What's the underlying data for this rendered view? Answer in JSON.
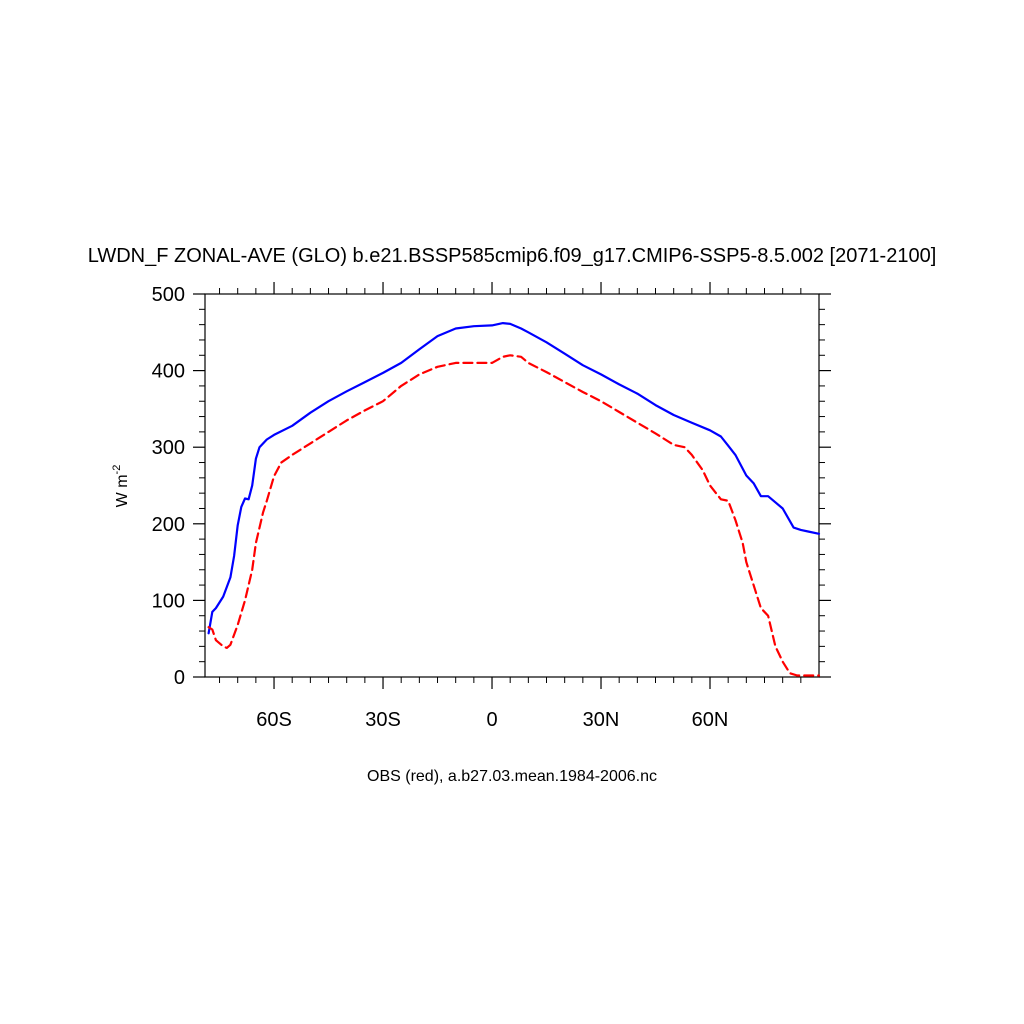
{
  "chart_data": {
    "type": "line",
    "title": "LWDN_F ZONAL-AVE (GLO) b.e21.BSSP585cmip6.f09_g17.CMIP6-SSP5-8.5.002 [2071-2100]",
    "subtitle": "OBS (red), a.b27.03.mean.1984-2006.nc",
    "ylabel_main": "W m",
    "ylabel_sup": "-2",
    "xlim": [
      -79,
      90
    ],
    "ylim": [
      0,
      500
    ],
    "x_ticks": [
      {
        "value": -60,
        "label": "60S"
      },
      {
        "value": -30,
        "label": "30S"
      },
      {
        "value": 0,
        "label": "0"
      },
      {
        "value": 30,
        "label": "30N"
      },
      {
        "value": 60,
        "label": "60N"
      }
    ],
    "y_ticks": [
      {
        "value": 0,
        "label": "0"
      },
      {
        "value": 100,
        "label": "100"
      },
      {
        "value": 200,
        "label": "200"
      },
      {
        "value": 300,
        "label": "300"
      },
      {
        "value": 400,
        "label": "400"
      },
      {
        "value": 500,
        "label": "500"
      }
    ],
    "series": [
      {
        "color": "#0000ff",
        "dash": "solid",
        "x": [
          -78,
          -77,
          -76,
          -74,
          -72,
          -71,
          -70,
          -69,
          -68,
          -67,
          -66,
          -65,
          -64,
          -62,
          -60,
          -55,
          -50,
          -45,
          -40,
          -35,
          -30,
          -25,
          -20,
          -15,
          -10,
          -5,
          0,
          3,
          5,
          8,
          10,
          15,
          20,
          25,
          30,
          35,
          40,
          45,
          50,
          55,
          60,
          63,
          65,
          67,
          70,
          72,
          74,
          76,
          77,
          80,
          83,
          85,
          87,
          90
        ],
        "y": [
          57,
          85,
          90,
          105,
          130,
          158,
          198,
          222,
          233,
          232,
          250,
          285,
          300,
          310,
          316,
          328,
          345,
          360,
          373,
          385,
          397,
          410,
          428,
          445,
          455,
          458,
          459,
          462,
          461,
          455,
          450,
          437,
          422,
          407,
          395,
          382,
          370,
          355,
          342,
          332,
          322,
          314,
          302,
          290,
          263,
          253,
          236,
          236,
          232,
          220,
          195,
          192,
          190,
          187
        ]
      },
      {
        "color": "#ff0000",
        "dash": "dashed",
        "x": [
          -78,
          -77,
          -76,
          -74,
          -73,
          -72,
          -70,
          -68,
          -66,
          -65,
          -63,
          -62,
          -60,
          -58,
          -55,
          -50,
          -45,
          -40,
          -35,
          -30,
          -25,
          -20,
          -15,
          -10,
          -5,
          0,
          3,
          5,
          8,
          10,
          15,
          20,
          25,
          30,
          35,
          40,
          45,
          50,
          53,
          55,
          58,
          60,
          63,
          65,
          67,
          69,
          70,
          72,
          74,
          76,
          78,
          80,
          82,
          84,
          86,
          88,
          90
        ],
        "y": [
          65,
          62,
          48,
          40,
          38,
          42,
          68,
          100,
          140,
          175,
          215,
          230,
          262,
          280,
          290,
          305,
          320,
          335,
          348,
          360,
          380,
          395,
          405,
          410,
          410,
          410,
          418,
          420,
          418,
          410,
          398,
          385,
          372,
          360,
          346,
          332,
          318,
          303,
          300,
          290,
          270,
          250,
          232,
          230,
          205,
          175,
          150,
          120,
          90,
          80,
          40,
          20,
          5,
          2,
          2,
          2,
          2
        ]
      }
    ]
  }
}
